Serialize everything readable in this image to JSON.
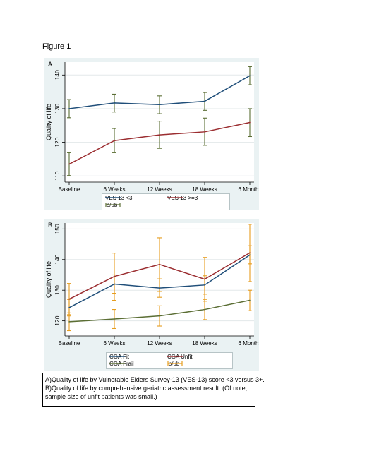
{
  "figure_label": "Figure 1",
  "caption": {
    "line1": "A)Quality of life by Vulnerable Elders Survey-13 (VES-13) score <3 versus 3+.",
    "line2": "B)Quality of life by comprehensive geriatric assessment result. (Of note,",
    "line3": "sample size of unfit patients was small.)"
  },
  "colors": {
    "panel_bg": "#eaf2f3",
    "navy": "#1f4e79",
    "maroon": "#9b2d30",
    "olive": "#5b6e34",
    "orange": "#e69d1f"
  },
  "chart_data": [
    {
      "type": "line",
      "panel_label": "A",
      "ylabel": "Quality of life",
      "xlabel": "",
      "categories": [
        "Baseline",
        "6 Weeks",
        "12 Weeks",
        "18 Weeks",
        "6 Months"
      ],
      "ylim": [
        109,
        143
      ],
      "yticks": [
        110,
        120,
        130,
        140
      ],
      "grid": "horizontal",
      "series": [
        {
          "name": "VES 13 <3",
          "color": "#1f4e79",
          "values": [
            130,
            131.7,
            131.2,
            132.2,
            139.8
          ],
          "lb": [
            127.3,
            129.0,
            128.5,
            129.5,
            137.1
          ],
          "ub": [
            132.7,
            134.3,
            133.8,
            134.8,
            142.5
          ]
        },
        {
          "name": "VES 13 >=3",
          "color": "#9b2d30",
          "values": [
            113.5,
            120.5,
            122.2,
            123.1,
            125.9
          ],
          "lb": [
            110.1,
            116.9,
            118.2,
            119.1,
            121.7
          ],
          "ub": [
            116.9,
            124.1,
            126.3,
            127.2,
            130.0
          ]
        }
      ],
      "ci_color": "#5b6e34",
      "legend": [
        "VES 13 <3",
        "VES 13 >=3",
        "lb/ub"
      ],
      "legend_position": "bottom"
    },
    {
      "type": "line",
      "panel_label": "B",
      "ylabel": "Quality of life",
      "xlabel": "",
      "categories": [
        "Baseline",
        "6 Weeks",
        "12 Weeks",
        "18 Weeks",
        "6 Months"
      ],
      "ylim": [
        116,
        151
      ],
      "yticks": [
        120,
        130,
        140,
        150
      ],
      "grid": "horizontal",
      "series": [
        {
          "name": "CGA Fit",
          "color": "#1f4e79",
          "values": [
            124.3,
            132.0,
            130.7,
            131.7,
            141.5
          ],
          "lb": [
            121.6,
            129.0,
            127.7,
            128.7,
            138.6
          ],
          "ub": [
            127.0,
            135.0,
            133.7,
            134.7,
            144.5
          ]
        },
        {
          "name": "CGA Unfit",
          "color": "#9b2d30",
          "values": [
            127.1,
            134.5,
            138.4,
            133.6,
            142.2
          ],
          "lb": [
            122.0,
            126.7,
            129.6,
            126.4,
            132.8
          ],
          "ub": [
            132.2,
            142.1,
            147.1,
            140.7,
            151.5
          ]
        },
        {
          "name": "CGA Frail",
          "color": "#5b6e34",
          "values": [
            119.7,
            120.6,
            121.6,
            123.7,
            126.7
          ],
          "lb": [
            116.8,
            117.5,
            118.3,
            120.4,
            123.3
          ],
          "ub": [
            122.6,
            123.7,
            124.9,
            127.0,
            130.0
          ]
        }
      ],
      "ci_color": "#e69d1f",
      "legend": [
        "CGA Fit",
        "CGA Unfit",
        "CGA Frail",
        "lb/ub"
      ],
      "legend_position": "bottom"
    }
  ]
}
